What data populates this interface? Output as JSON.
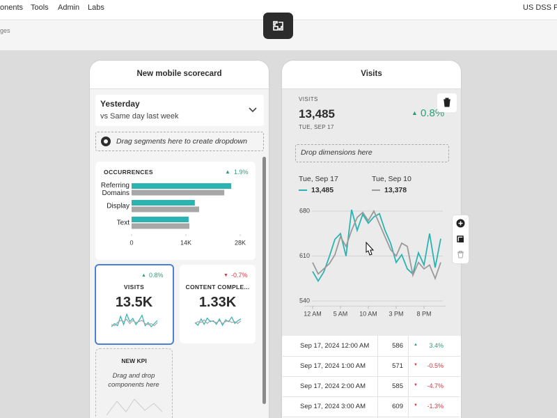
{
  "nav": {
    "items": [
      "onents",
      "Tools",
      "Admin",
      "Labs"
    ],
    "org": "US DSS Plat",
    "breadcrumb": "ges"
  },
  "scorecard": {
    "title": "New mobile scorecard",
    "date_range": "Yesterday",
    "comparison": "vs Same day last week",
    "segment_drop": "Drag segments here to create dropdown",
    "kpis": [
      {
        "label": "VISITS",
        "change": "0.8%",
        "value": "13.5K"
      },
      {
        "label": "CONTENT COMPLE...",
        "change": "-0.7%",
        "value": "1.33K"
      }
    ],
    "new_kpi": {
      "label": "NEW KPI",
      "hint": "Drag and drop components here"
    }
  },
  "visits_panel": {
    "title": "Visits",
    "metric": "VISITS",
    "value": "13,485",
    "change": "0.8%",
    "date": "TUE, SEP 17",
    "drop": "Drop dimensions here",
    "legend_values": [
      "13,485",
      "13,378"
    ]
  },
  "table": {
    "rows": [
      [
        "Sep 17, 2024 12:00 AM",
        586,
        "3.4%"
      ],
      [
        "Sep 17, 2024 1:00 AM",
        571,
        "-0.5%"
      ],
      [
        "Sep 17, 2024 2:00 AM",
        585,
        "-4.7%"
      ],
      [
        "Sep 17, 2024 3:00 AM",
        609,
        "-1.3%"
      ]
    ]
  },
  "chart_data": [
    {
      "type": "bar",
      "orientation": "horizontal",
      "title": "OCCURRENCES",
      "change": "1.9%",
      "categories": [
        "Referring Domains",
        "Display",
        "Text"
      ],
      "series": [
        {
          "color": "#2bb3b1",
          "values": [
            25700,
            16300,
            14700
          ]
        },
        {
          "color": "#a7a7a7",
          "values": [
            23900,
            17400,
            14900
          ]
        }
      ],
      "xlim": [
        0,
        28000
      ],
      "xticks": [
        0,
        {
          "value": 14000,
          "label": "14K"
        },
        {
          "value": 28000,
          "label": "28K"
        }
      ]
    },
    {
      "type": "line",
      "categories": [
        "12 AM",
        null,
        null,
        null,
        null,
        "5 AM",
        null,
        null,
        null,
        null,
        "10 AM",
        null,
        null,
        null,
        null,
        "3 PM",
        null,
        null,
        null,
        null,
        "8 PM",
        null,
        null,
        null
      ],
      "series": [
        {
          "name": "Tue, Sep 17",
          "color": "#2bb3b1",
          "values": [
            586,
            571,
            585,
            609,
            636,
            645,
            610,
            682,
            650,
            675,
            661,
            671,
            676,
            650,
            630,
            600,
            612,
            590,
            582,
            615,
            596,
            645,
            592,
            637
          ]
        },
        {
          "name": "Tue, Sep 10",
          "color": "#9a9a9a",
          "values": [
            600,
            582,
            590,
            598,
            612,
            640,
            625,
            650,
            670,
            678,
            665,
            680,
            660,
            640,
            620,
            610,
            630,
            625,
            580,
            600,
            590,
            596,
            575,
            600
          ]
        }
      ],
      "ylim": [
        532,
        688
      ],
      "yticks": [
        540,
        610,
        680
      ],
      "grid": true
    },
    {
      "type": "sparkline",
      "series": [
        {
          "color": "#2bb3b1",
          "values": [
            30,
            45,
            35,
            80,
            40,
            90,
            55,
            70,
            40,
            60,
            85,
            35,
            50,
            30,
            45,
            60
          ]
        },
        {
          "color": "#a7a7a7",
          "values": [
            40,
            35,
            50,
            60,
            55,
            65,
            45,
            60,
            50,
            55,
            60,
            45,
            40,
            45,
            35,
            50
          ]
        }
      ],
      "ylim": [
        0,
        100
      ]
    },
    {
      "type": "sparkline",
      "series": [
        {
          "color": "#2bb3b1",
          "values": [
            50,
            35,
            70,
            40,
            75,
            55,
            60,
            40,
            70,
            35,
            65,
            55,
            80,
            45,
            60,
            70
          ]
        },
        {
          "color": "#a7a7a7",
          "values": [
            45,
            55,
            50,
            65,
            45,
            60,
            55,
            50,
            60,
            45,
            55,
            60,
            50,
            55,
            45,
            60
          ]
        }
      ],
      "ylim": [
        0,
        100
      ]
    }
  ]
}
